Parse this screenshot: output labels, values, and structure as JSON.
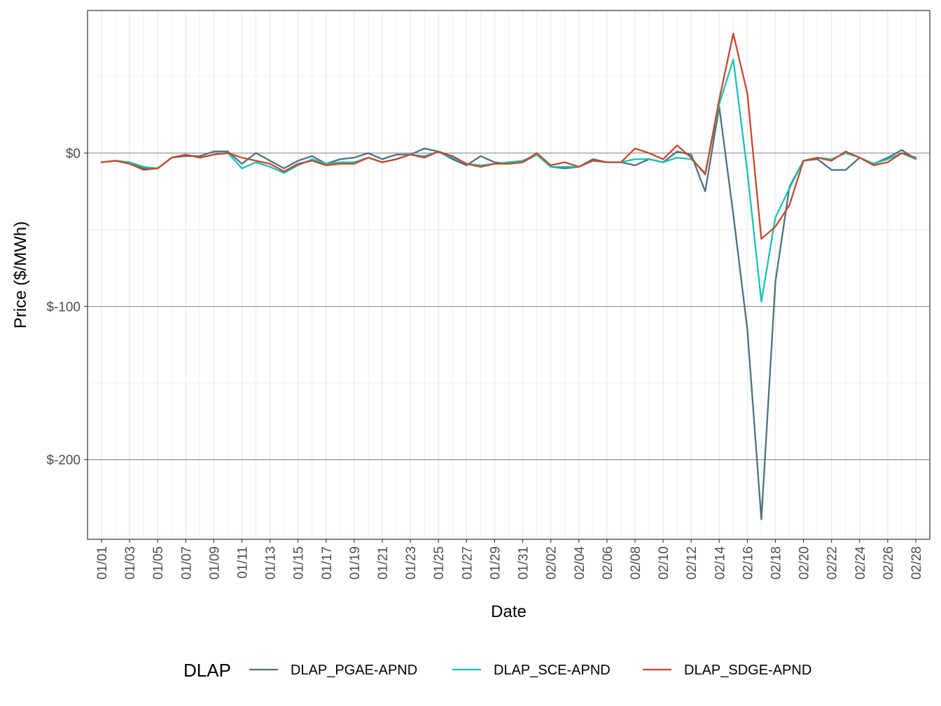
{
  "chart_data": {
    "type": "line",
    "title": "",
    "xlabel": "Date",
    "ylabel": "Price ($/MWh)",
    "ylim": [
      -252,
      93
    ],
    "y_ticks": [
      {
        "value": 0,
        "label": "$0"
      },
      {
        "value": -100,
        "label": "$-100"
      },
      {
        "value": -200,
        "label": "$-200"
      }
    ],
    "x_tick_labels": [
      "01/01",
      "01/03",
      "01/05",
      "01/07",
      "01/09",
      "01/11",
      "01/13",
      "01/15",
      "01/17",
      "01/19",
      "01/21",
      "01/23",
      "01/25",
      "01/27",
      "01/29",
      "01/31",
      "02/02",
      "02/04",
      "02/06",
      "02/08",
      "02/10",
      "02/12",
      "02/14",
      "02/16",
      "02/18",
      "02/20",
      "02/22",
      "02/24",
      "02/26",
      "02/28"
    ],
    "x": [
      "01/01",
      "01/02",
      "01/03",
      "01/04",
      "01/05",
      "01/06",
      "01/07",
      "01/08",
      "01/09",
      "01/10",
      "01/11",
      "01/12",
      "01/13",
      "01/14",
      "01/15",
      "01/16",
      "01/17",
      "01/18",
      "01/19",
      "01/20",
      "01/21",
      "01/22",
      "01/23",
      "01/24",
      "01/25",
      "01/26",
      "01/27",
      "01/28",
      "01/29",
      "01/30",
      "01/31",
      "02/01",
      "02/02",
      "02/03",
      "02/04",
      "02/05",
      "02/06",
      "02/07",
      "02/08",
      "02/09",
      "02/10",
      "02/11",
      "02/12",
      "02/13",
      "02/14",
      "02/15",
      "02/16",
      "02/17",
      "02/18",
      "02/19",
      "02/20",
      "02/21",
      "02/22",
      "02/23",
      "02/24",
      "02/25",
      "02/26",
      "02/27",
      "02/28"
    ],
    "grid": true,
    "legend": {
      "title": "DLAP",
      "position": "bottom"
    },
    "series": [
      {
        "name": "DLAP_PGAE-APND",
        "color": "#4d7181",
        "values": [
          -6,
          -5,
          -6,
          -10,
          -10,
          -3,
          -2,
          -2,
          1,
          1,
          -7,
          0,
          -5,
          -10,
          -5,
          -2,
          -7,
          -4,
          -3,
          0,
          -4,
          -1,
          -1,
          3,
          1,
          -4,
          -8,
          -2,
          -6,
          -7,
          -6,
          -1,
          -9,
          -10,
          -9,
          -4,
          -6,
          -6,
          -8,
          -4,
          -6,
          1,
          -1,
          -25,
          30,
          -40,
          -115,
          -239,
          -84,
          -22,
          -5,
          -4,
          -11,
          -11,
          -3,
          -7,
          -3,
          2,
          -4
        ]
      },
      {
        "name": "DLAP_SCE-APND",
        "color": "#18c4b0",
        "values": [
          -6,
          -5,
          -6,
          -9,
          -10,
          -3,
          -1,
          -3,
          -1,
          0,
          -10,
          -6,
          -9,
          -13,
          -8,
          -4,
          -7,
          -6,
          -6,
          -3,
          -6,
          -4,
          -1,
          -2,
          1,
          -3,
          -7,
          -8,
          -7,
          -6,
          -5,
          -1,
          -9,
          -9,
          -9,
          -5,
          -6,
          -6,
          -4,
          -4,
          -6,
          -3,
          -4,
          -13,
          32,
          61,
          -12,
          -97,
          -42,
          -23,
          -5,
          -3,
          -4,
          0,
          -3,
          -7,
          -4,
          0,
          -4
        ]
      },
      {
        "name": "DLAP_SDGE-APND",
        "color": "#c8472b",
        "values": [
          -6,
          -5,
          -7,
          -11,
          -10,
          -3,
          -1,
          -3,
          -1,
          0,
          -3,
          -5,
          -7,
          -12,
          -7,
          -5,
          -8,
          -7,
          -7,
          -3,
          -6,
          -4,
          -1,
          -3,
          1,
          -2,
          -7,
          -9,
          -7,
          -7,
          -6,
          0,
          -8,
          -6,
          -9,
          -5,
          -6,
          -6,
          3,
          0,
          -4,
          5,
          -3,
          -14,
          35,
          78,
          39,
          -56,
          -48,
          -34,
          -5,
          -3,
          -5,
          1,
          -3,
          -8,
          -6,
          0,
          -3
        ]
      }
    ]
  }
}
